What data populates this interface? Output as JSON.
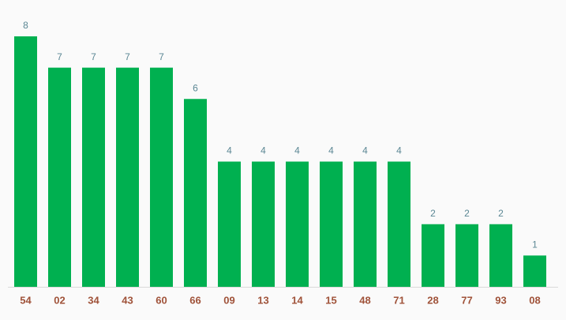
{
  "chart_data": {
    "type": "bar",
    "categories": [
      "54",
      "02",
      "34",
      "43",
      "60",
      "66",
      "09",
      "13",
      "14",
      "15",
      "48",
      "71",
      "28",
      "77",
      "93",
      "08"
    ],
    "values": [
      8,
      7,
      7,
      7,
      7,
      6,
      4,
      4,
      4,
      4,
      4,
      4,
      2,
      2,
      2,
      1
    ],
    "color": "#00b050"
  }
}
